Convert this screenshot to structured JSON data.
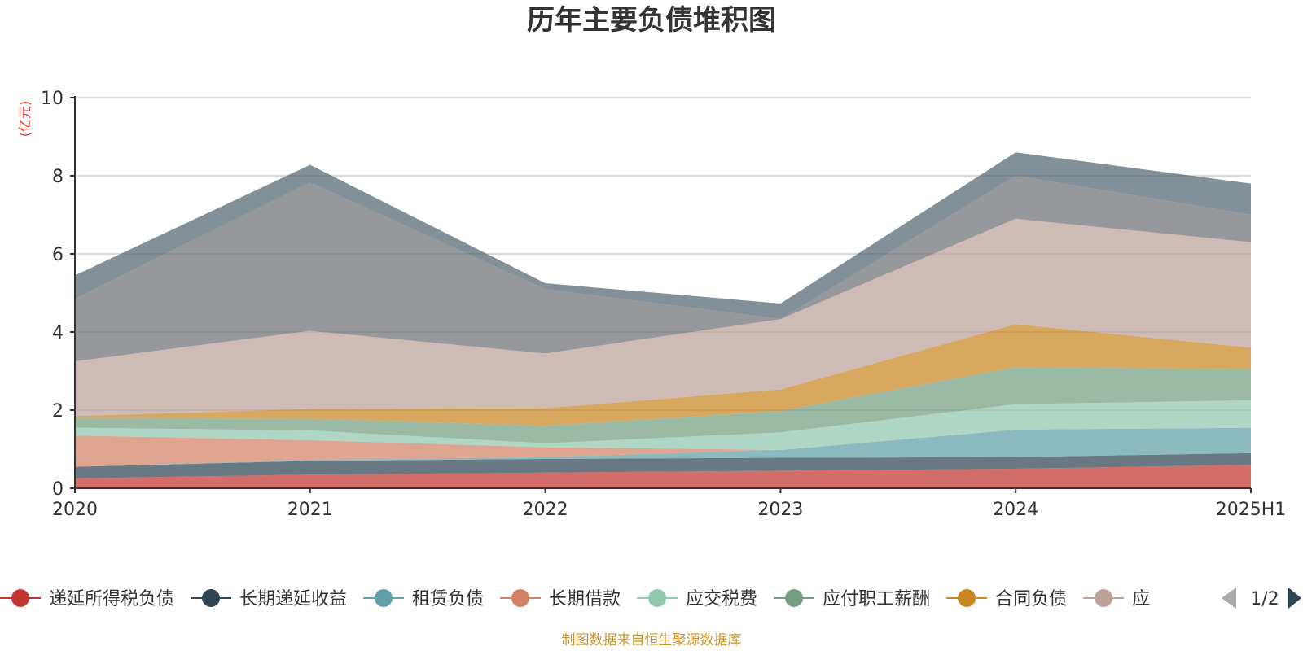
{
  "chart_data": {
    "type": "area",
    "stacked": true,
    "title": "历年主要负债堆积图",
    "ylabel": "(亿元)",
    "ylim": [
      0,
      10
    ],
    "yticks": [
      0,
      2,
      4,
      6,
      8,
      10
    ],
    "grid": true,
    "legend_position": "bottom",
    "categories": [
      "2020",
      "2021",
      "2022",
      "2023",
      "2024",
      "2025H1"
    ],
    "series": [
      {
        "name": "递延所得税负债",
        "color": "#c23531",
        "values": [
          0.25,
          0.35,
          0.4,
          0.45,
          0.5,
          0.6
        ]
      },
      {
        "name": "长期递延收益",
        "color": "#2f4554",
        "values": [
          0.3,
          0.35,
          0.35,
          0.33,
          0.3,
          0.3
        ]
      },
      {
        "name": "租赁负债",
        "color": "#61a0a8",
        "values": [
          0.0,
          0.03,
          0.05,
          0.2,
          0.7,
          0.65
        ]
      },
      {
        "name": "长期借款",
        "color": "#d48265",
        "values": [
          0.8,
          0.5,
          0.25,
          0.0,
          0.0,
          0.0
        ]
      },
      {
        "name": "应交税费",
        "color": "#91c7ae",
        "values": [
          0.2,
          0.25,
          0.1,
          0.45,
          0.65,
          0.7
        ]
      },
      {
        "name": "应付职工薪酬",
        "color": "#749f83",
        "values": [
          0.25,
          0.3,
          0.45,
          0.55,
          0.95,
          0.8
        ]
      },
      {
        "name": "合同负债",
        "color": "#ca8622",
        "values": [
          0.05,
          0.25,
          0.45,
          0.55,
          1.1,
          0.55
        ]
      },
      {
        "name": "应",
        "color": "#bda29a",
        "values": [
          1.4,
          2.0,
          1.4,
          1.8,
          2.7,
          2.7
        ]
      },
      {
        "name": "",
        "color": "#6e7074",
        "values": [
          1.6,
          3.8,
          1.65,
          0.0,
          1.1,
          0.7
        ]
      },
      {
        "name": "",
        "color": "#546570",
        "values": [
          0.6,
          0.45,
          0.15,
          0.4,
          0.6,
          0.8
        ]
      }
    ]
  },
  "legend": {
    "page_indicator": "1/2",
    "visible_count": 8
  },
  "footer": {
    "source": "制图数据来自恒生聚源数据库"
  }
}
